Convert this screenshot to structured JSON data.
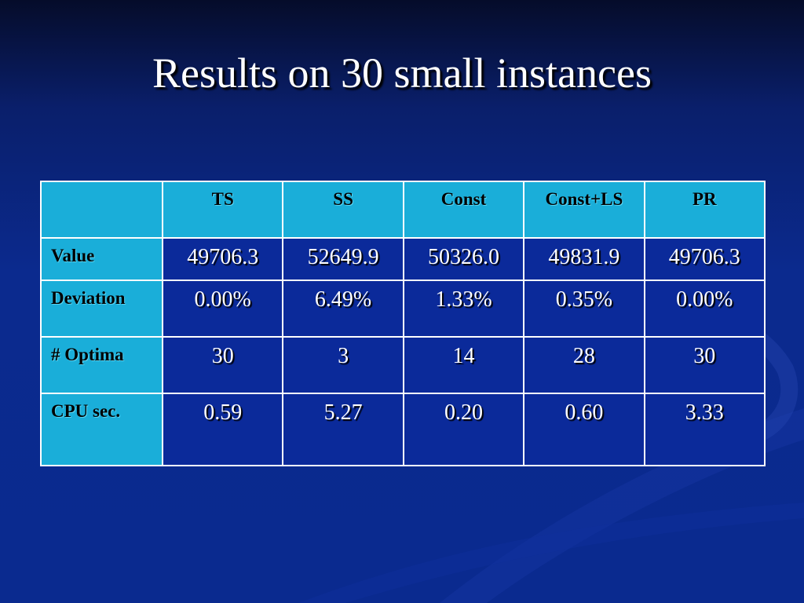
{
  "slide": {
    "title": "Results on 30 small instances"
  },
  "table": {
    "columns": [
      "TS",
      "SS",
      "Const",
      "Const+LS",
      "PR"
    ],
    "rows": [
      {
        "label": "Value",
        "cells": [
          "49706.3",
          "52649.9",
          "50326.0",
          "49831.9",
          "49706.3"
        ]
      },
      {
        "label": "Deviation",
        "cells": [
          "0.00%",
          "6.49%",
          "1.33%",
          "0.35%",
          "0.00%"
        ]
      },
      {
        "label": "# Optima",
        "cells": [
          "30",
          "3",
          "14",
          "28",
          "30"
        ]
      },
      {
        "label": "CPU sec.",
        "cells": [
          "0.59",
          "5.27",
          "0.20",
          "0.60",
          "3.33"
        ]
      }
    ]
  },
  "colors": {
    "background": "#0b2a8e",
    "header_fill": "#1aaed9",
    "cell_fill": "#0b2a9a",
    "border": "#ffffff"
  }
}
